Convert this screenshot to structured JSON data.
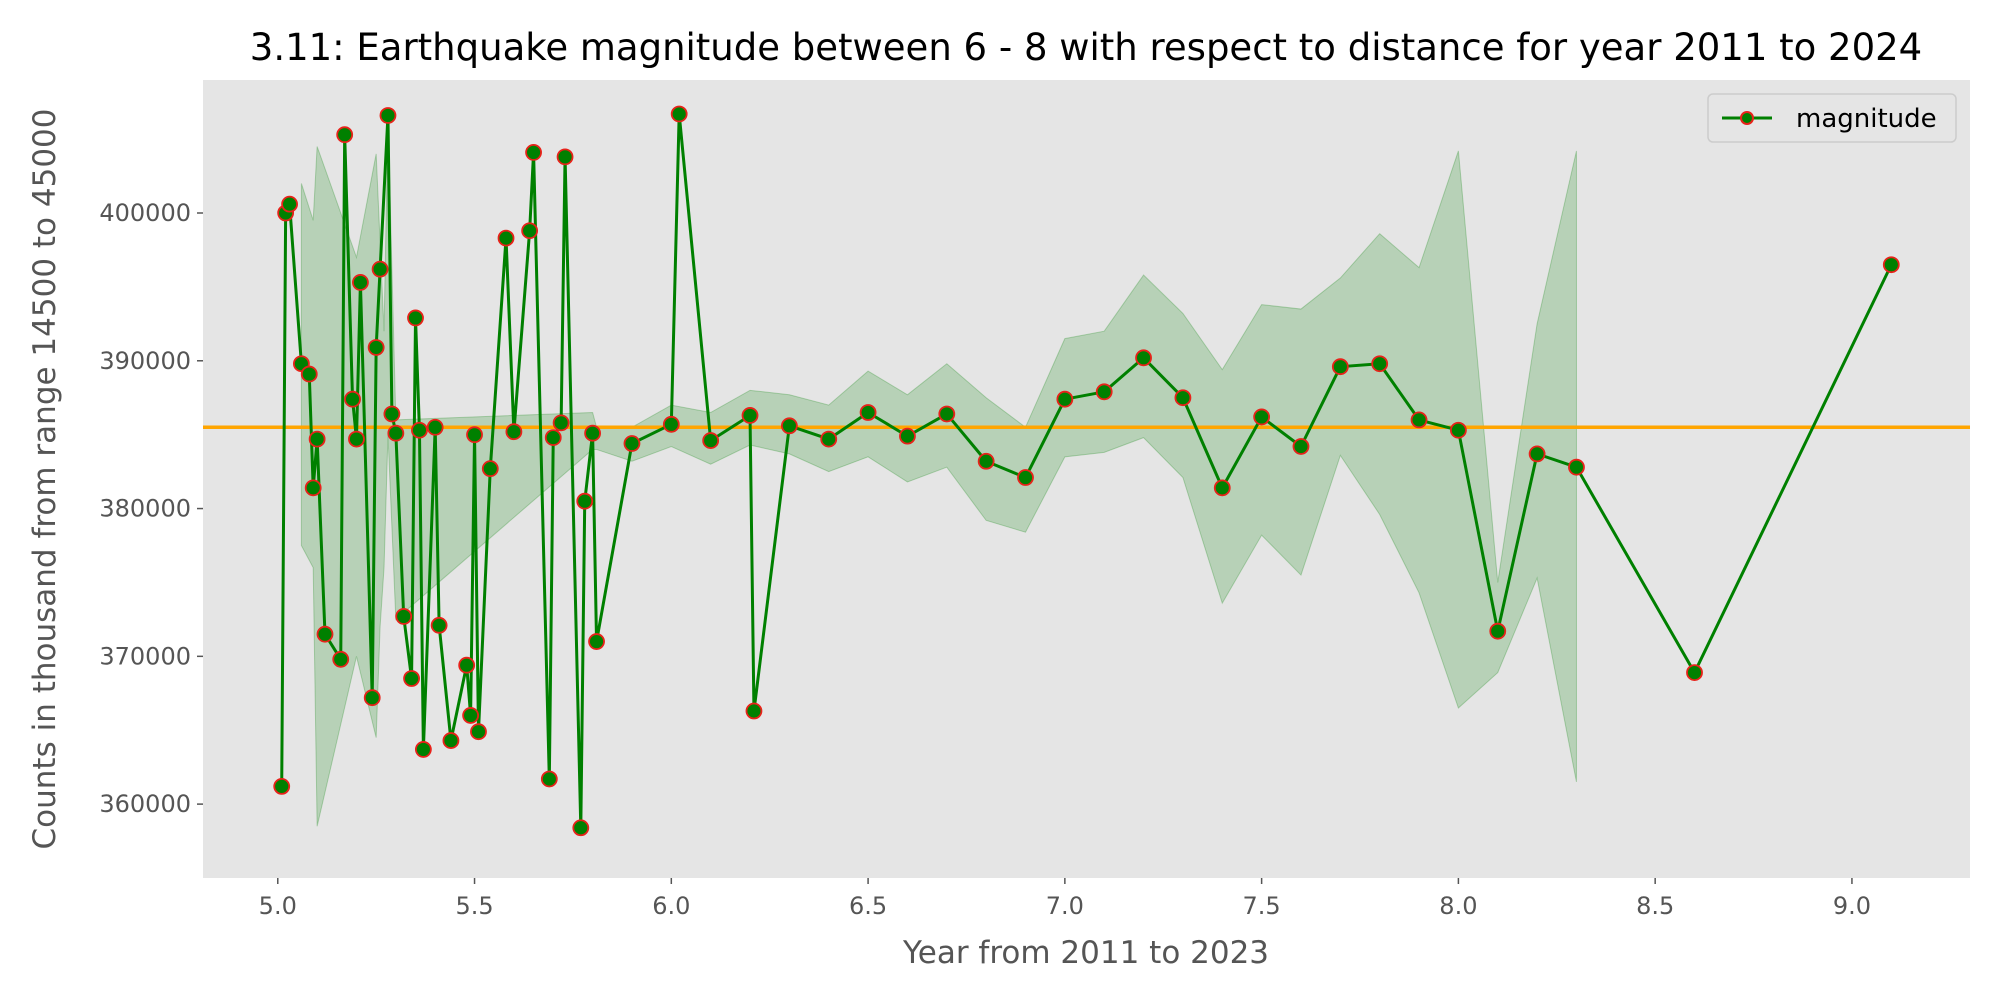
{
  "chart_data": {
    "type": "line",
    "title": "3.11: Earthquake magnitude between 6 - 8 with respect to distance for year 2011 to 2024",
    "xlabel": "Year from 2011 to 2023",
    "ylabel": "Counts in thousand from range 14500 to 45000",
    "xlim": [
      4.81,
      9.3
    ],
    "ylim": [
      355000,
      409000
    ],
    "xticks": [
      "5.0",
      "5.5",
      "6.0",
      "6.5",
      "7.0",
      "7.5",
      "8.0",
      "8.5",
      "9.0"
    ],
    "yticks": [
      "360000",
      "370000",
      "380000",
      "390000",
      "400000"
    ],
    "grid": false,
    "legend_position": "top-right",
    "reference_line": {
      "y": 385500,
      "color": "#ffa500"
    },
    "series": [
      {
        "name": "magnitude",
        "line_color": "#008000",
        "marker_face": "#008000",
        "marker_edge": "#e8221a",
        "band_color": "#008000",
        "x": [
          5.01,
          5.02,
          5.03,
          5.06,
          5.08,
          5.09,
          5.1,
          5.12,
          5.16,
          5.17,
          5.19,
          5.2,
          5.21,
          5.24,
          5.25,
          5.26,
          5.28,
          5.29,
          5.3,
          5.32,
          5.34,
          5.35,
          5.36,
          5.37,
          5.4,
          5.41,
          5.44,
          5.48,
          5.49,
          5.5,
          5.51,
          5.54,
          5.58,
          5.6,
          5.64,
          5.65,
          5.69,
          5.7,
          5.72,
          5.73,
          5.77,
          5.78,
          5.8,
          5.81,
          5.9,
          6.0,
          6.02,
          6.1,
          6.2,
          6.21,
          6.3,
          6.4,
          6.5,
          6.6,
          6.7,
          6.8,
          6.9,
          7.0,
          7.1,
          7.2,
          7.3,
          7.4,
          7.5,
          7.6,
          7.7,
          7.8,
          7.9,
          8.0,
          8.1,
          8.2,
          8.3,
          8.6,
          9.1
        ],
        "y": [
          361200,
          400000,
          400600,
          389800,
          389100,
          381400,
          384700,
          371500,
          369800,
          405300,
          387400,
          384700,
          395300,
          367200,
          390900,
          396200,
          406600,
          386400,
          385100,
          372700,
          368500,
          392900,
          385300,
          363700,
          385500,
          372100,
          364300,
          369400,
          366000,
          385000,
          364900,
          382700,
          398300,
          385200,
          398800,
          404100,
          361700,
          384800,
          385800,
          403800,
          358400,
          380500,
          385100,
          371000,
          384400,
          385700,
          406700,
          384600,
          386300,
          366300,
          385600,
          384700,
          386500,
          384900,
          386400,
          383200,
          382100,
          387400,
          387900,
          390200,
          387500,
          381400,
          386200,
          384200,
          389600,
          389800,
          386000,
          385300,
          371700,
          383700,
          382800,
          368900,
          396500
        ]
      }
    ],
    "confidence_band": {
      "x": [
        5.06,
        5.09,
        5.1,
        5.2,
        5.25,
        5.26,
        5.27,
        5.28,
        5.3,
        5.8,
        5.81,
        5.9,
        6.0,
        6.1,
        6.2,
        6.3,
        6.4,
        6.5,
        6.6,
        6.7,
        6.8,
        6.9,
        7.0,
        7.1,
        7.2,
        7.3,
        7.4,
        7.5,
        7.6,
        7.7,
        7.8,
        7.9,
        8.0,
        8.1,
        8.2,
        8.3
      ],
      "upper": [
        402000,
        399500,
        404500,
        397000,
        404000,
        398000,
        392000,
        406500,
        386000,
        386500,
        385500,
        385500,
        387000,
        386500,
        388000,
        387700,
        387000,
        389300,
        387700,
        389800,
        387500,
        385500,
        391500,
        392000,
        395800,
        393200,
        389400,
        393800,
        393500,
        395600,
        398600,
        396300,
        404200,
        375000,
        392500,
        404200
      ],
      "lower": [
        377500,
        376000,
        358500,
        370000,
        364500,
        372000,
        376000,
        385000,
        372500,
        384000,
        384000,
        383200,
        384200,
        383000,
        384300,
        383700,
        382500,
        383500,
        381800,
        382800,
        379200,
        378400,
        383500,
        383800,
        384800,
        382100,
        373600,
        378200,
        375500,
        383600,
        379600,
        374300,
        366500,
        368900,
        375300,
        361500
      ]
    }
  }
}
